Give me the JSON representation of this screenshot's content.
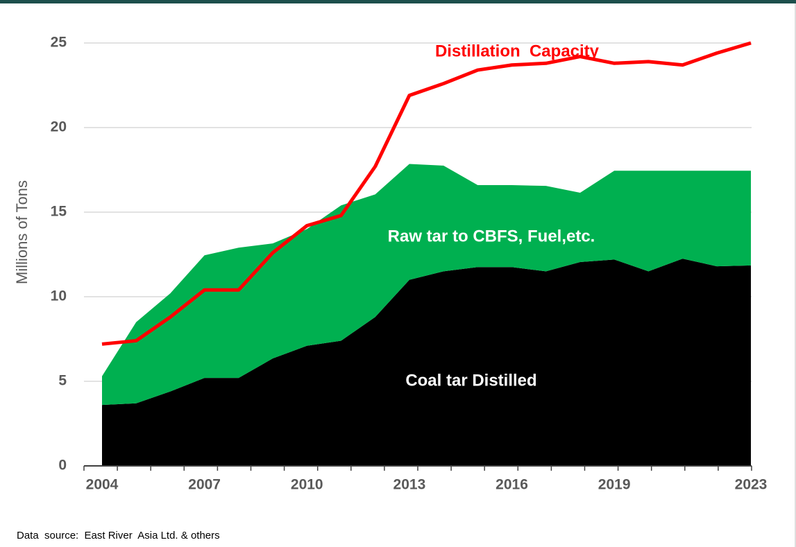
{
  "chart_data": {
    "type": "area",
    "ylabel": "Millions of Tons",
    "source": "Data  source:  East River  Asia Ltd. & others",
    "categories": [
      "2004",
      null,
      null,
      "2007",
      null,
      null,
      "2010",
      null,
      null,
      "2013",
      null,
      null,
      "2016",
      null,
      null,
      "2019",
      null,
      null,
      null,
      "2023"
    ],
    "series": [
      {
        "name": "Coal tar Distilled",
        "color": "#000000",
        "stacked": true,
        "values": [
          3.6,
          3.7,
          4.4,
          5.2,
          5.2,
          6.35,
          7.1,
          7.4,
          8.8,
          11.0,
          11.5,
          11.75,
          11.75,
          11.5,
          12.05,
          12.2,
          11.5,
          12.25,
          11.8,
          11.85
        ]
      },
      {
        "name": "Raw tar to CBFS, Fuel,etc.",
        "color": "#00b050",
        "stacked": true,
        "values": [
          1.7,
          4.8,
          5.8,
          7.25,
          7.7,
          6.8,
          6.9,
          8.0,
          7.25,
          6.85,
          6.25,
          4.85,
          4.85,
          5.05,
          4.1,
          5.25,
          5.95,
          5.2,
          5.65,
          5.6
        ]
      },
      {
        "name": "Distillation  Capacity",
        "color": "#ff0000",
        "type": "line",
        "values": [
          7.2,
          7.4,
          8.8,
          10.4,
          10.4,
          12.6,
          14.2,
          14.8,
          17.7,
          21.9,
          22.6,
          23.4,
          23.7,
          23.8,
          24.2,
          23.8,
          23.9,
          23.7,
          24.4,
          25.0
        ]
      }
    ],
    "ylim": [
      0,
      25
    ],
    "yticks": [
      0,
      5,
      10,
      15,
      20,
      25
    ],
    "grid": true
  }
}
